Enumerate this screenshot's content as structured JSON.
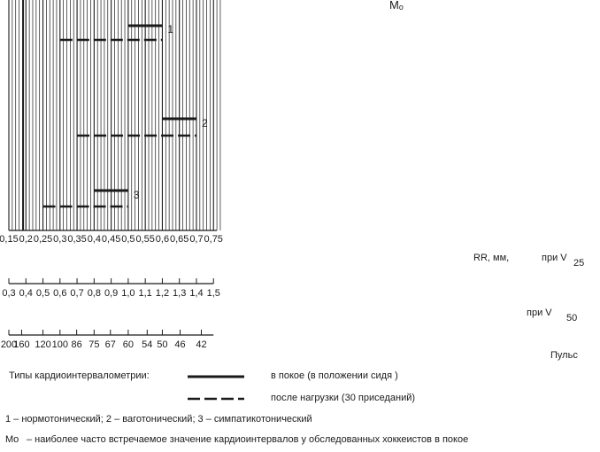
{
  "chart_data": {
    "type": "range-bars",
    "mo_label": "Mₒ",
    "rr_axis": {
      "ticks": [
        "0,15",
        "0,2",
        "0,25",
        "0,3",
        "0,35",
        "0,4",
        "0,45",
        "0,5",
        "0,55",
        "0,6",
        "0,65",
        "0,7",
        "0,75"
      ],
      "label": "RR, мм,",
      "speed_label": "при V",
      "speed_sub": "25"
    },
    "rr50_axis": {
      "ticks": [
        "0,3",
        "0,4",
        "0,5",
        "0,6",
        "0,7",
        "0,8",
        "0,9",
        "1,0",
        "1,1",
        "1,2",
        "1,3",
        "1,4",
        "1,5"
      ],
      "speed_label": "при V",
      "speed_sub": "50"
    },
    "pulse_axis": {
      "ticks": [
        "200",
        "160",
        "120",
        "100",
        "86",
        "75",
        "67",
        "60",
        "54",
        "50",
        "46",
        "42"
      ],
      "label": "Пульс"
    },
    "groups": [
      {
        "id": "1",
        "rest": [
          0.5,
          0.6
        ],
        "after_load": [
          0.3,
          0.6
        ]
      },
      {
        "id": "2",
        "rest": [
          0.6,
          0.7
        ],
        "after_load": [
          0.35,
          0.7
        ]
      },
      {
        "id": "3",
        "rest": [
          0.4,
          0.5
        ],
        "after_load": [
          0.25,
          0.5
        ]
      }
    ]
  },
  "legend": {
    "title": "Типы кардиоинтервалометрии:",
    "rest": "в покое   (в положении   сидя )",
    "after": "после нагрузки (30 приседаний)",
    "types": "1 – нормотонический;   2 – ваготонический;     3 – симпатикотонический",
    "mo_symbol": "Mo",
    "mo_desc": "– наиболее часто встречаемое значение   кардиоинтервалов у обследованных хоккеистов в покое"
  }
}
